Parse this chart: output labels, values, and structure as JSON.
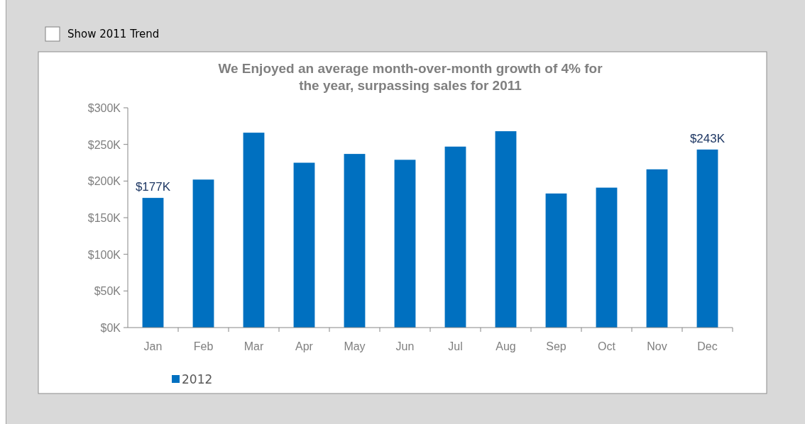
{
  "chart_data": {
    "type": "bar",
    "title": "We Enjoyed an average month-over-month growth of 4% for the year, surpassing sales for 2011",
    "categories": [
      "Jan",
      "Feb",
      "Mar",
      "Apr",
      "May",
      "Jun",
      "Jul",
      "Aug",
      "Sep",
      "Oct",
      "Nov",
      "Dec"
    ],
    "series": [
      {
        "name": "2012",
        "color": "#0070c0",
        "values": [
          177,
          202,
          266,
          225,
          237,
          229,
          247,
          268,
          183,
          191,
          216,
          243
        ],
        "value_labels": [
          "$177K",
          null,
          null,
          null,
          null,
          null,
          null,
          null,
          null,
          null,
          null,
          "$243K"
        ]
      }
    ],
    "ylim": [
      0,
      300
    ],
    "yticks": [
      {
        "value": 0,
        "label": "$0K"
      },
      {
        "value": 50,
        "label": "$50K"
      },
      {
        "value": 100,
        "label": "$100K"
      },
      {
        "value": 150,
        "label": "$150K"
      },
      {
        "value": 200,
        "label": "$200K"
      },
      {
        "value": 250,
        "label": "$250K"
      },
      {
        "value": 300,
        "label": "$300K"
      }
    ],
    "grid": false,
    "legend": "bottom left",
    "annotations": [
      "Show 2011 Trend"
    ]
  }
}
